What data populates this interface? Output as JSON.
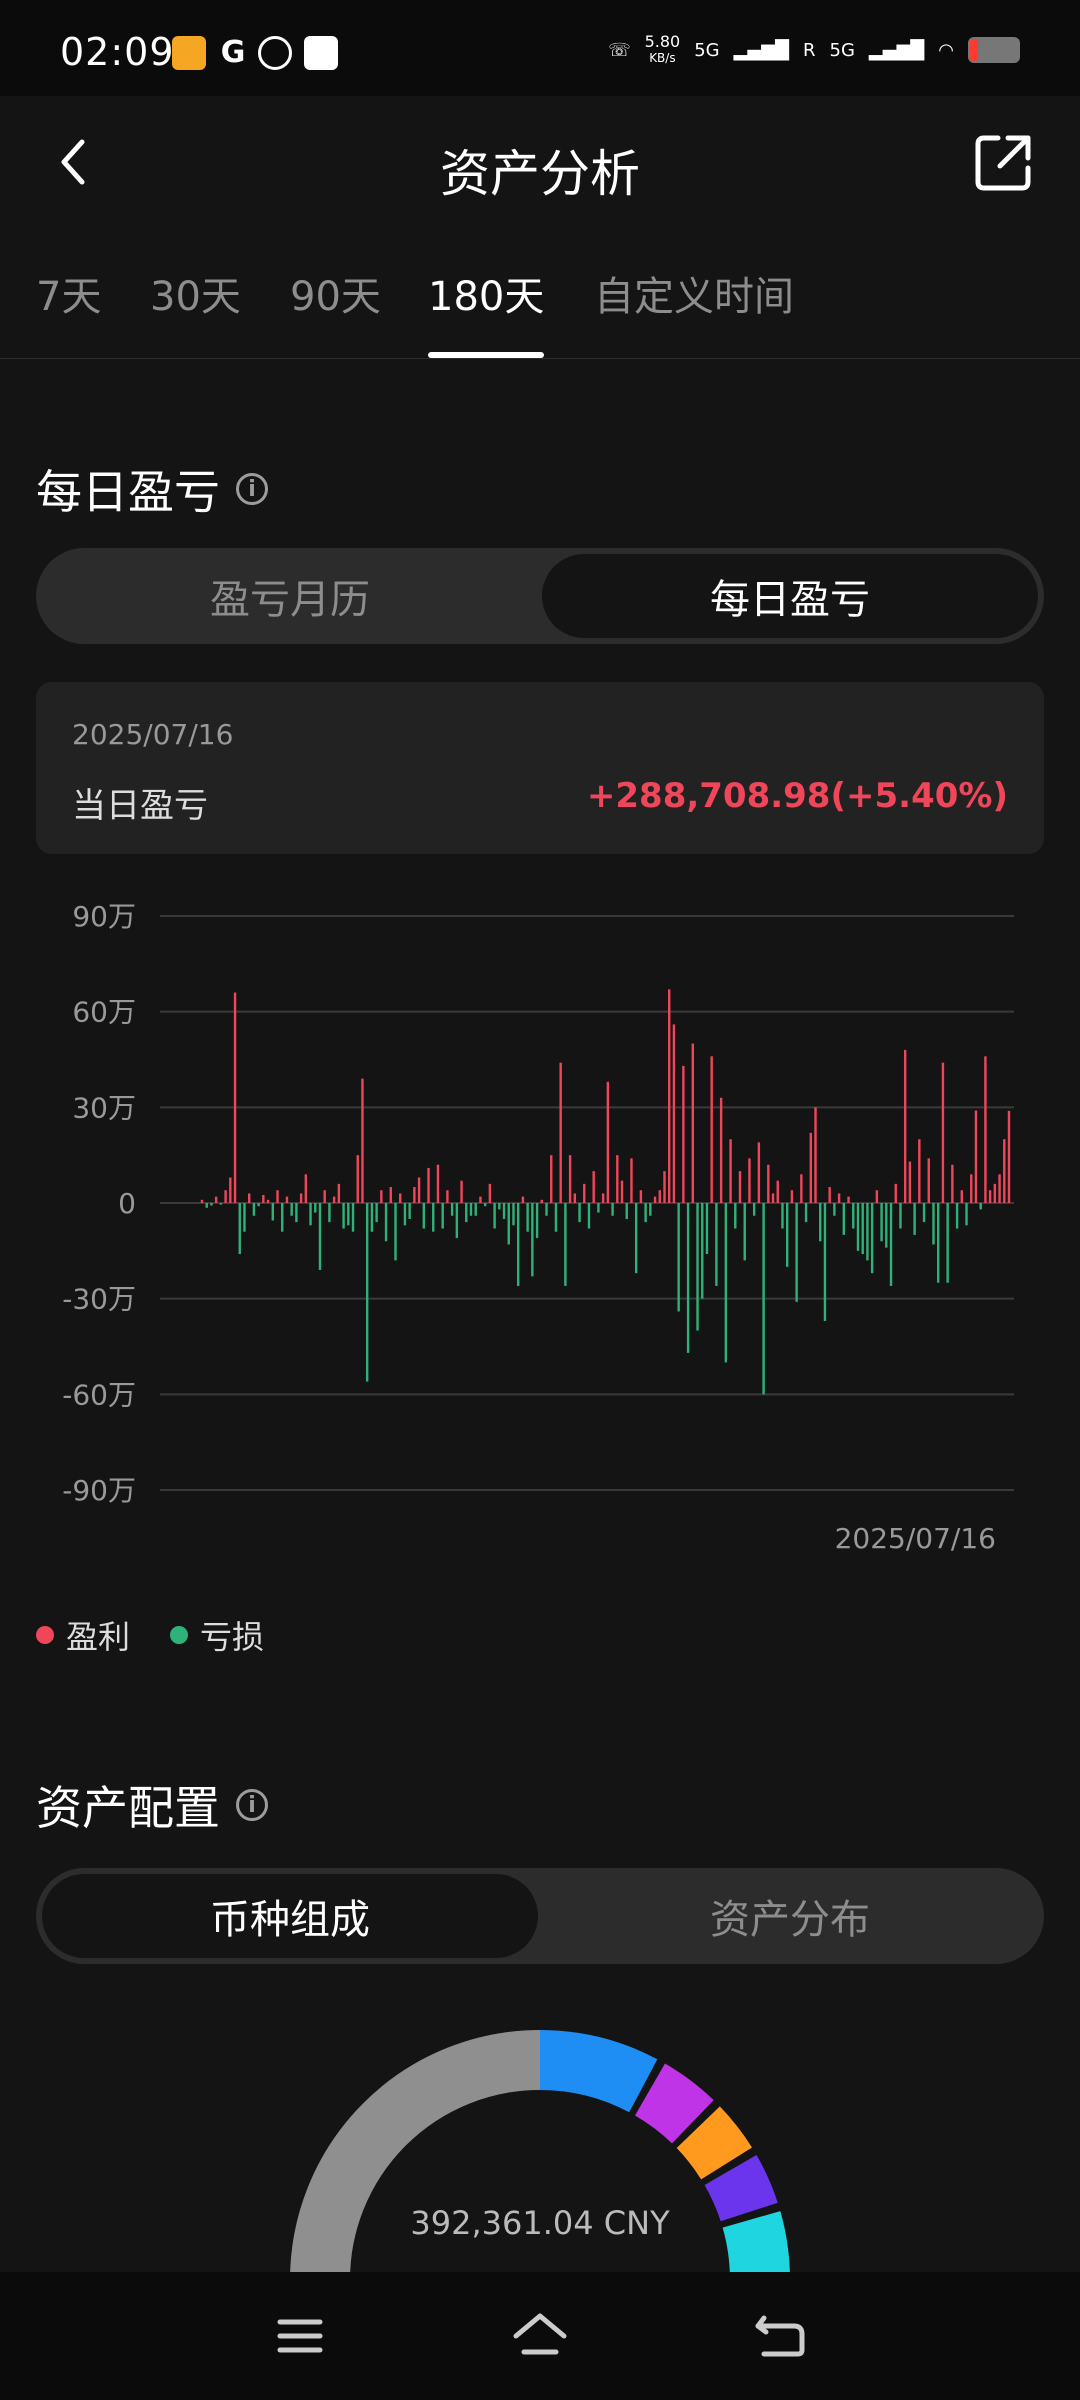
{
  "status_bar": {
    "time": "02:09",
    "speed_value": "5.80",
    "speed_unit": "KB/s",
    "network_1": "5G",
    "network_2": "5G",
    "roaming": "R"
  },
  "header": {
    "title": "资产分析"
  },
  "tabs": [
    {
      "label": "7天",
      "active": false
    },
    {
      "label": "30天",
      "active": false
    },
    {
      "label": "90天",
      "active": false
    },
    {
      "label": "180天",
      "active": true
    },
    {
      "label": "自定义时间",
      "active": false
    }
  ],
  "daily_pnl": {
    "title": "每日盈亏",
    "segments": [
      "盈亏月历",
      "每日盈亏"
    ],
    "active_segment": 1,
    "card": {
      "date": "2025/07/16",
      "label": "当日盈亏",
      "value": "+288,708.98(+5.40%)"
    }
  },
  "chart_data": {
    "type": "bar",
    "title": "",
    "xlabel": "",
    "ylabel": "",
    "ylim": [
      -900000,
      900000
    ],
    "y_ticks": [
      "90万",
      "60万",
      "30万",
      "0",
      "-30万",
      "-60万",
      "-90万"
    ],
    "x_end_label": "2025/07/16",
    "grid": true,
    "colors": {
      "profit": "#f0465a",
      "loss": "#2fb27a"
    },
    "series": [
      {
        "name": "盈利",
        "values": [
          10000,
          -15000,
          -8000,
          20000,
          -5000,
          40000,
          80000,
          660000,
          -160000,
          -90000,
          30000,
          -40000,
          -10000,
          25000,
          10000,
          -55000,
          40000,
          -90000,
          20000,
          -40000,
          -60000,
          30000,
          90000,
          -70000,
          -30000,
          -210000,
          40000,
          -60000,
          20000,
          60000,
          -80000,
          -70000,
          -90000,
          150000,
          390000,
          -560000,
          -90000,
          -60000,
          40000,
          -120000,
          50000,
          -180000,
          30000,
          -70000,
          -50000,
          50000,
          80000,
          -80000,
          110000,
          -90000,
          120000,
          -80000,
          40000,
          -40000,
          -110000,
          70000,
          -60000,
          -40000,
          -40000,
          20000,
          -10000,
          60000,
          -80000,
          -20000,
          -50000,
          -130000,
          -70000,
          -260000,
          20000,
          -90000,
          -230000,
          -110000,
          10000,
          -40000,
          150000,
          -90000,
          440000,
          -260000,
          150000,
          30000,
          -60000,
          60000,
          -80000,
          100000,
          -30000,
          30000,
          380000,
          -40000,
          150000,
          70000,
          -50000,
          140000,
          -220000,
          40000,
          -60000,
          -40000,
          20000,
          40000,
          100000,
          670000,
          560000,
          -340000,
          430000,
          -470000,
          500000,
          -400000,
          -300000,
          -160000,
          460000,
          -260000,
          330000,
          -500000,
          200000,
          -80000,
          100000,
          -180000,
          140000,
          -40000,
          190000,
          -600000,
          120000,
          30000,
          70000,
          -80000,
          -200000,
          40000,
          -310000,
          90000,
          -60000,
          220000,
          300000,
          -120000,
          -370000,
          50000,
          -40000,
          30000,
          -100000,
          20000,
          -80000,
          -150000,
          -160000,
          -180000,
          -220000,
          40000,
          -120000,
          -140000,
          -260000,
          60000,
          -80000,
          480000,
          130000,
          -100000,
          200000,
          -60000,
          140000,
          -130000,
          -250000,
          440000,
          -250000,
          120000,
          -80000,
          40000,
          -70000,
          90000,
          290000,
          -20000,
          460000,
          40000,
          60000,
          90000,
          200000,
          289000
        ]
      }
    ]
  },
  "legend": [
    {
      "label": "盈利",
      "color": "#f0465a"
    },
    {
      "label": "亏损",
      "color": "#2fb27a"
    }
  ],
  "asset_allocation": {
    "title": "资产配置",
    "segments": [
      "币种组成",
      "资产分布"
    ],
    "active_segment": 0,
    "total": "392,361.04 CNY",
    "donut_colors": [
      "#1e8ef5",
      "#c034e8",
      "#ff9a1f",
      "#6b35ee",
      "#1fd6e0",
      "#8f8f8f"
    ]
  },
  "icons": {
    "back": "chevron-left-icon",
    "share": "share-external-icon",
    "info": "info-icon",
    "menu": "menu-icon",
    "home": "home-icon",
    "return": "return-icon"
  }
}
